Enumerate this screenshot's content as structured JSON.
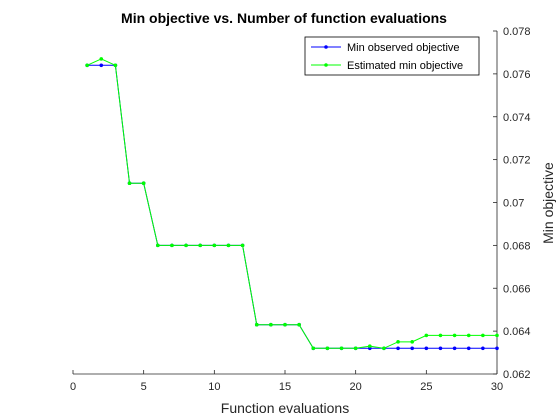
{
  "chart_data": {
    "type": "line",
    "title": "Min objective vs. Number of function evaluations",
    "xlabel": "Function evaluations",
    "ylabel": "Min objective",
    "xlim": [
      0,
      30
    ],
    "ylim": [
      0.062,
      0.078
    ],
    "x_ticks": [
      0,
      5,
      10,
      15,
      20,
      25,
      30
    ],
    "y_ticks": [
      0.062,
      0.064,
      0.066,
      0.068,
      0.07,
      0.072,
      0.074,
      0.076,
      0.078
    ],
    "x_tick_labels": [
      "0",
      "5",
      "10",
      "15",
      "20",
      "25",
      "30"
    ],
    "y_tick_labels": [
      "0.062",
      "0.064",
      "0.066",
      "0.068",
      "0.07",
      "0.072",
      "0.074",
      "0.076",
      "0.078"
    ],
    "y_axis_location": "right",
    "grid": false,
    "legend_position": "top-right",
    "x": [
      1,
      2,
      3,
      4,
      5,
      6,
      7,
      8,
      9,
      10,
      11,
      12,
      13,
      14,
      15,
      16,
      17,
      18,
      19,
      20,
      21,
      22,
      23,
      24,
      25,
      26,
      27,
      28,
      29,
      30
    ],
    "series": [
      {
        "name": "Min observed objective",
        "color": "#0000ff",
        "values": [
          0.0764,
          0.0764,
          0.0764,
          0.0709,
          0.0709,
          0.068,
          0.068,
          0.068,
          0.068,
          0.068,
          0.068,
          0.068,
          0.0643,
          0.0643,
          0.0643,
          0.0643,
          0.0632,
          0.0632,
          0.0632,
          0.0632,
          0.0632,
          0.0632,
          0.0632,
          0.0632,
          0.0632,
          0.0632,
          0.0632,
          0.0632,
          0.0632,
          0.0632
        ]
      },
      {
        "name": "Estimated min objective",
        "color": "#00ff00",
        "values": [
          0.0764,
          0.0767,
          0.0764,
          0.0709,
          0.0709,
          0.068,
          0.068,
          0.068,
          0.068,
          0.068,
          0.068,
          0.068,
          0.0643,
          0.0643,
          0.0643,
          0.0643,
          0.0632,
          0.0632,
          0.0632,
          0.0632,
          0.0633,
          0.0632,
          0.0635,
          0.0635,
          0.0638,
          0.0638,
          0.0638,
          0.0638,
          0.0638,
          0.0638
        ]
      }
    ]
  }
}
